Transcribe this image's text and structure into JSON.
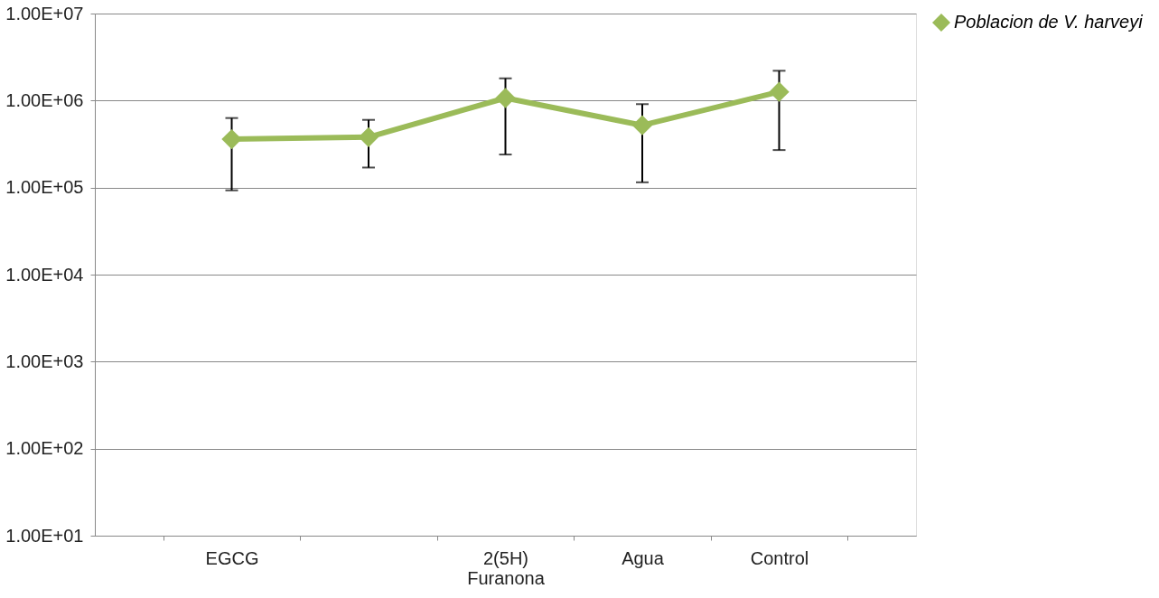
{
  "chart_data": {
    "type": "line",
    "categories": [
      "EGCG",
      null,
      "2(5H) Furanona",
      "Agua",
      "Control"
    ],
    "series": [
      {
        "name": "Poblacion de V. harveyi",
        "color": "#9bbb59",
        "values": [
          360000,
          380000,
          1070000,
          520000,
          1260000
        ],
        "errors": [
          [
            93000,
            630000
          ],
          [
            170000,
            600000
          ],
          [
            240000,
            1800000
          ],
          [
            115000,
            910000
          ],
          [
            270000,
            2200000
          ]
        ]
      }
    ],
    "log": "y",
    "ylim": [
      10,
      10000000
    ],
    "yticks": [
      {
        "value": 10,
        "label": "1.00E+01"
      },
      {
        "value": 100,
        "label": "1.00E+02"
      },
      {
        "value": 1000,
        "label": "1.00E+03"
      },
      {
        "value": 10000,
        "label": "1.00E+04"
      },
      {
        "value": 100000,
        "label": "1.00E+05"
      },
      {
        "value": 1000000,
        "label": "1.00E+06"
      },
      {
        "value": 10000000,
        "label": "1.00E+07"
      }
    ],
    "grid": "y",
    "legend": "right",
    "marker": "diamond",
    "line_style": "solid"
  }
}
